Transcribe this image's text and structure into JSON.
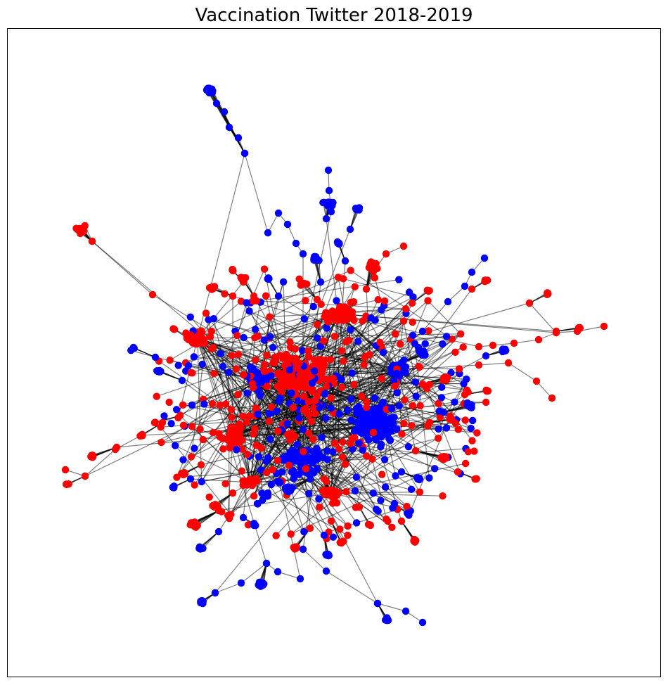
{
  "title": "Vaccination Twitter 2018-2019",
  "colors": {
    "group_a": "#ff0000",
    "group_b": "#0000ff",
    "edge": "#000000"
  },
  "legend": "none",
  "axes": "hidden"
}
